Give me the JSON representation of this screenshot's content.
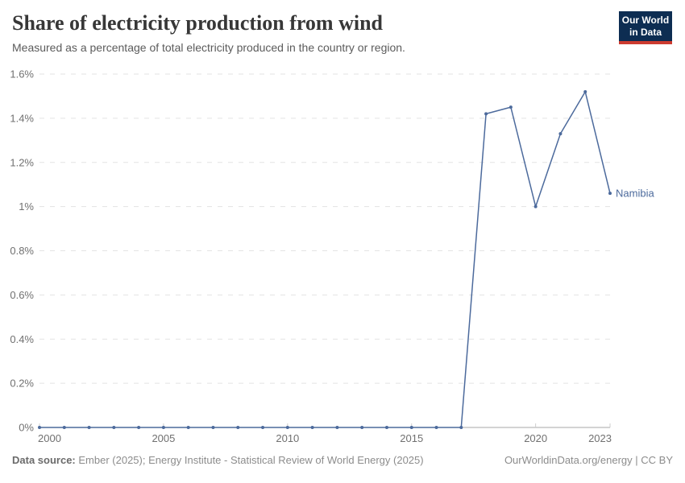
{
  "header": {
    "title": "Share of electricity production from wind",
    "subtitle": "Measured as a percentage of total electricity produced in the country or region."
  },
  "logo": {
    "line1": "Our World",
    "line2": "in Data",
    "bg_color": "#0d2d52",
    "accent_color": "#cc3b30"
  },
  "chart_data": {
    "type": "line",
    "title": "Share of electricity production from wind",
    "xlabel": "",
    "ylabel": "",
    "xlim": [
      2000,
      2023
    ],
    "ylim": [
      0,
      1.6
    ],
    "grid": "horizontal-dashed",
    "legend_position": "end-of-line-label",
    "x_ticks": [
      2000,
      2005,
      2010,
      2015,
      2020,
      2023
    ],
    "x_tick_labels": [
      "2000",
      "2005",
      "2010",
      "2015",
      "2020",
      "2023"
    ],
    "y_ticks": [
      0,
      0.2,
      0.4,
      0.6,
      0.8,
      1.0,
      1.2,
      1.4,
      1.6
    ],
    "y_tick_labels": [
      "0%",
      "0.2%",
      "0.4%",
      "0.6%",
      "0.8%",
      "1%",
      "1.2%",
      "1.4%",
      "1.6%"
    ],
    "series": [
      {
        "name": "Namibia",
        "color": "#4c6a9c",
        "x": [
          2000,
          2001,
          2002,
          2003,
          2004,
          2005,
          2006,
          2007,
          2008,
          2009,
          2010,
          2011,
          2012,
          2013,
          2014,
          2015,
          2016,
          2017,
          2018,
          2019,
          2020,
          2021,
          2022,
          2023
        ],
        "values": [
          0,
          0,
          0,
          0,
          0,
          0,
          0,
          0,
          0,
          0,
          0,
          0,
          0,
          0,
          0,
          0,
          0,
          0,
          1.42,
          1.45,
          1.0,
          1.33,
          1.52,
          1.06
        ]
      }
    ],
    "colors": {
      "grid": "#e3e3e3",
      "axis": "#a7a7a7",
      "axis_tick": "#cccccc",
      "tick_text": "#707070"
    }
  },
  "footer": {
    "source_label": "Data source:",
    "source_text": "Ember (2025); Energy Institute - Statistical Review of World Energy (2025)",
    "right_text": "OurWorldinData.org/energy | CC BY"
  }
}
